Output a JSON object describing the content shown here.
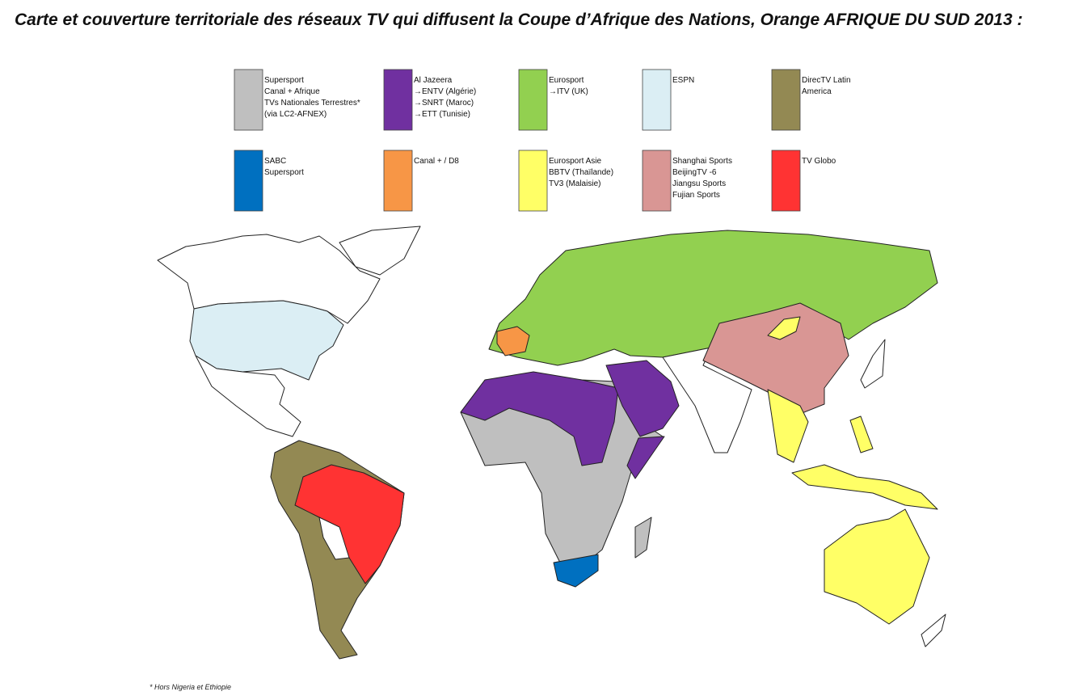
{
  "title": "Carte et couverture territoriale des réseaux TV qui diffusent la Coupe d’Afrique des Nations, Orange AFRIQUE DU SUD 2013 :",
  "legend": [
    {
      "color": "#bfbfbf",
      "lines": [
        "Supersport",
        "Canal + Afrique",
        "TVs Nationales Terrestres*",
        "(via LC2-AFNEX)"
      ]
    },
    {
      "color": "#7030a0",
      "lines": [
        "Al Jazeera",
        "→ENTV (Algérie)",
        "→SNRT (Maroc)",
        "→ETT (Tunisie)"
      ]
    },
    {
      "color": "#92d050",
      "lines": [
        "Eurosport",
        "→ITV (UK)"
      ]
    },
    {
      "color": "#dbeef4",
      "lines": [
        "ESPN"
      ]
    },
    {
      "color": "#938953",
      "lines": [
        "DirecTV Latin",
        "America"
      ]
    },
    {
      "color": "#0070c0",
      "lines": [
        "SABC",
        "Supersport"
      ]
    },
    {
      "color": "#f79646",
      "lines": [
        "Canal + / D8"
      ]
    },
    {
      "color": "#ffff66",
      "lines": [
        "Eurosport Asie",
        "BBTV (Thaïlande)",
        "TV3 (Malaisie)"
      ]
    },
    {
      "color": "#d99694",
      "lines": [
        "Shanghai Sports",
        "BeijingTV -6",
        "Jiangsu Sports",
        "Fujian Sports"
      ]
    },
    {
      "color": "#ff3333",
      "lines": [
        "TV Globo"
      ]
    }
  ],
  "footnote": "* Hors  Nigeria et  Ethiopie"
}
